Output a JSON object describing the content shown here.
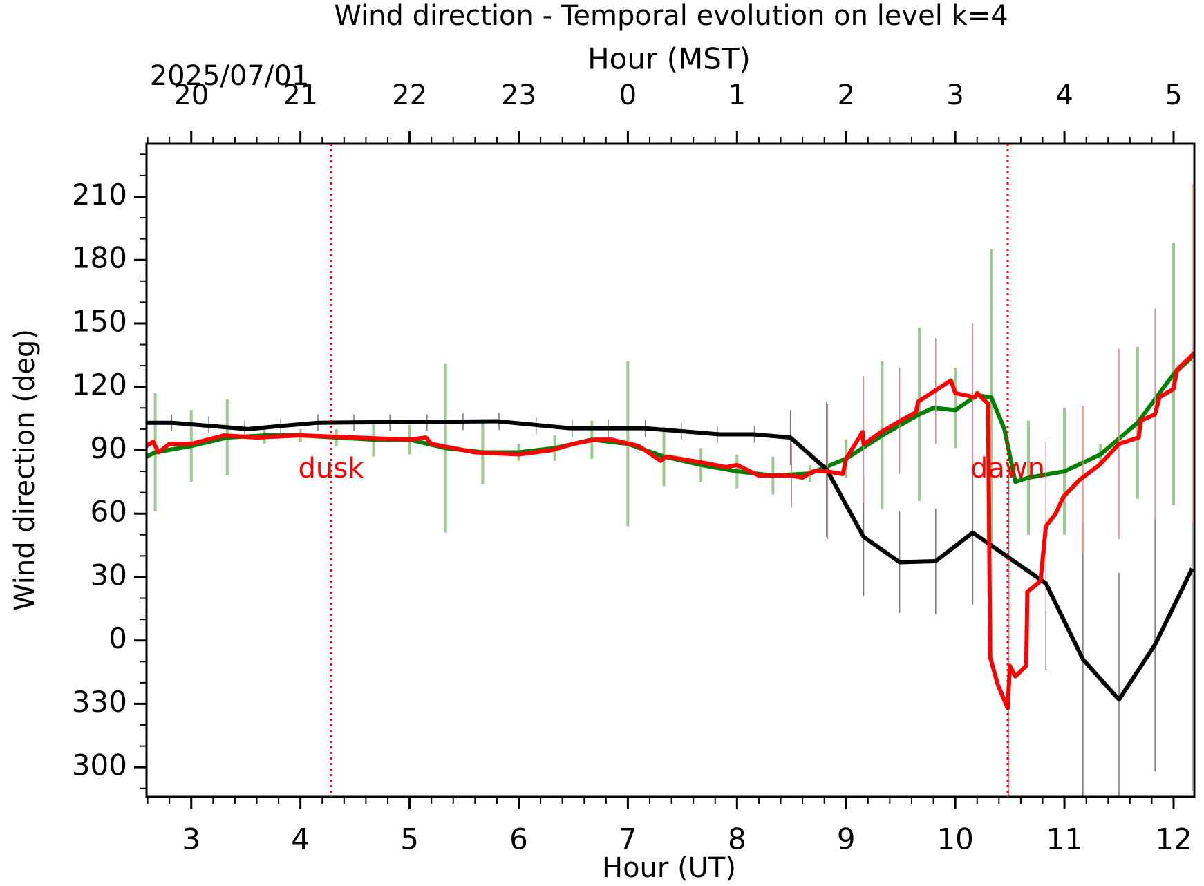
{
  "chart_data": {
    "type": "line",
    "title": "Wind direction - Temporal evolution on level k=4",
    "x2label": "Hour (MST)",
    "xlabel": "Hour (UT)",
    "ylabel": "Wind direction (deg)",
    "date_label": "2025/07/01",
    "xlim": [
      2.59,
      12.19
    ],
    "ylim": [
      -74,
      235
    ],
    "xticks": [
      3,
      4,
      5,
      6,
      7,
      8,
      9,
      10,
      11,
      12
    ],
    "x2ticks": [
      {
        "value": 3,
        "label": "20"
      },
      {
        "value": 4,
        "label": "21"
      },
      {
        "value": 5,
        "label": "22"
      },
      {
        "value": 6,
        "label": "23"
      },
      {
        "value": 7,
        "label": "0"
      },
      {
        "value": 8,
        "label": "1"
      },
      {
        "value": 9,
        "label": "2"
      },
      {
        "value": 10,
        "label": "3"
      },
      {
        "value": 11,
        "label": "4"
      },
      {
        "value": 12,
        "label": "5"
      }
    ],
    "yticks": [
      {
        "value": -60,
        "label": "300"
      },
      {
        "value": -30,
        "label": "330"
      },
      0,
      30,
      60,
      90,
      120,
      150,
      180,
      210
    ],
    "minor_per_major_x": 5,
    "minor_per_major_y": 3,
    "annotations": [
      {
        "x": 4.28,
        "label": "dusk",
        "color": "#ff0000"
      },
      {
        "x": 10.48,
        "label": "dawn",
        "color": "#ff0000"
      }
    ],
    "series": [
      {
        "color": "#9dc88f",
        "line": false,
        "width": 4,
        "x": [
          2.67,
          3.0,
          3.33,
          3.67,
          4.0,
          4.33,
          4.67,
          5.0,
          5.33,
          5.67,
          6.0,
          6.33,
          6.67,
          7.0,
          7.33,
          7.67,
          8.0,
          8.33,
          8.67,
          9.0,
          9.33,
          9.67,
          10.0,
          10.33,
          10.67,
          11.0,
          11.33,
          11.67,
          12.0
        ],
        "values": [
          89,
          92,
          96,
          97,
          97,
          96,
          95,
          95,
          91,
          89,
          89,
          91,
          95,
          93,
          87,
          83,
          80,
          78,
          79,
          86,
          97,
          107,
          110,
          115,
          77,
          80,
          88,
          103,
          126
        ],
        "errors": [
          28,
          17,
          18,
          4,
          3,
          4,
          8,
          7,
          40,
          15,
          4,
          6,
          9,
          39,
          14,
          8,
          8,
          9,
          4,
          9,
          35,
          41,
          19,
          70,
          27,
          30,
          5,
          36,
          62
        ]
      },
      {
        "color": "#008000",
        "line": true,
        "width": 6,
        "x": [
          2.59,
          2.67,
          3.0,
          3.33,
          3.67,
          4.0,
          4.33,
          4.67,
          5.0,
          5.33,
          5.67,
          6.0,
          6.33,
          6.67,
          7.0,
          7.33,
          7.67,
          8.0,
          8.33,
          8.67,
          9.0,
          9.33,
          9.67,
          9.8,
          10.0,
          10.2,
          10.33,
          10.45,
          10.55,
          10.67,
          11.0,
          11.33,
          11.67,
          12.0,
          12.19
        ],
        "values": [
          87,
          89,
          92,
          96,
          97,
          97,
          96,
          95,
          95,
          91,
          89,
          89,
          91,
          95,
          93,
          87,
          83,
          80,
          78,
          79,
          86,
          97,
          107,
          110,
          109,
          116,
          115,
          100,
          75,
          77,
          80,
          88,
          103,
          126,
          135
        ]
      },
      {
        "color": "#777777",
        "line": false,
        "width": 1.5,
        "x": [
          2.82,
          3.16,
          3.49,
          3.82,
          4.16,
          4.49,
          4.82,
          5.16,
          5.49,
          5.82,
          6.16,
          6.49,
          6.82,
          7.16,
          7.49,
          7.82,
          8.16,
          8.49,
          8.82,
          9.16,
          9.49,
          9.82,
          10.16,
          10.49,
          10.83,
          11.17,
          11.5,
          11.83,
          12.17
        ],
        "values": [
          103,
          102,
          100,
          101,
          103,
          103,
          103,
          103,
          103.5,
          103.7,
          101.5,
          100.4,
          100.4,
          100.4,
          99,
          97.5,
          97.5,
          96,
          81,
          49,
          37,
          37.5,
          51,
          39,
          27,
          -9,
          -28,
          -2,
          34
        ],
        "errors": [
          4,
          4,
          4,
          4,
          4,
          4,
          4,
          4,
          4,
          4,
          4,
          4,
          4,
          4,
          4,
          4,
          4,
          13,
          32,
          28,
          24,
          25,
          34,
          40,
          41,
          65,
          60,
          60,
          105
        ]
      },
      {
        "color": "#f08080",
        "line": false,
        "width": 1.5,
        "x": [
          8.5,
          8.83,
          9.16,
          9.49,
          9.82,
          10.16,
          10.49,
          10.83,
          11.17,
          11.5,
          11.83,
          12.17
        ],
        "values": [
          78,
          80,
          95,
          104,
          118,
          115,
          -20,
          54,
          76,
          93,
          107,
          136
        ],
        "errors": [
          15,
          32,
          30,
          25,
          25,
          35,
          60,
          40,
          35,
          45,
          50,
          80
        ]
      },
      {
        "color": "#000000",
        "line": true,
        "width": 6,
        "x": [
          2.59,
          2.82,
          3.52,
          3.83,
          4.16,
          5.8,
          6.47,
          7.15,
          7.84,
          8.15,
          8.49,
          8.82,
          9.16,
          9.49,
          9.82,
          10.16,
          10.83,
          11.17,
          11.5,
          11.83,
          12.17
        ],
        "values": [
          103,
          103,
          100,
          101.5,
          103,
          103.7,
          100.4,
          100.4,
          97.5,
          97.5,
          96,
          81,
          49,
          37,
          37.5,
          51,
          27,
          -9,
          -28,
          -2,
          34
        ]
      },
      {
        "color": "#ff0000",
        "line": true,
        "width": 6,
        "x": [
          2.59,
          2.65,
          2.7,
          2.8,
          3.0,
          3.3,
          3.6,
          4.0,
          4.5,
          5.0,
          5.15,
          5.2,
          5.6,
          6.0,
          6.3,
          6.5,
          6.7,
          6.85,
          7.1,
          7.3,
          7.35,
          7.7,
          7.9,
          8.0,
          8.2,
          8.5,
          8.6,
          8.7,
          8.82,
          8.97,
          9.0,
          9.15,
          9.16,
          9.32,
          9.5,
          9.64,
          9.66,
          9.78,
          9.96,
          10.0,
          10.18,
          10.2,
          10.3,
          10.32,
          10.39,
          10.48,
          10.5,
          10.55,
          10.65,
          10.66,
          10.78,
          10.83,
          10.92,
          10.99,
          11.14,
          11.32,
          11.5,
          11.68,
          11.7,
          11.83,
          11.87,
          12.0,
          12.03,
          12.19
        ],
        "values": [
          92,
          94,
          89,
          93,
          93,
          97,
          96,
          97,
          96,
          95,
          96,
          93,
          89,
          88,
          90,
          93,
          95,
          95,
          92,
          85,
          87,
          84,
          82,
          83,
          78,
          78,
          77,
          80,
          80,
          78.7,
          86,
          98.6,
          92.7,
          98.6,
          104,
          108,
          113,
          117,
          123,
          117,
          115,
          117,
          112,
          -8,
          -21,
          -32,
          -12,
          -17,
          -12,
          23,
          28,
          54,
          60,
          68,
          76,
          83,
          93,
          96,
          104,
          107,
          115,
          119,
          128,
          136
        ]
      }
    ]
  }
}
